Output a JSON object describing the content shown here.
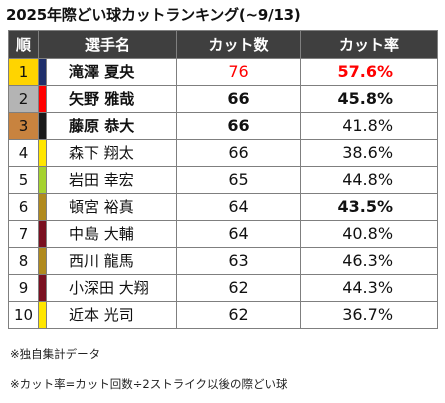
{
  "title": "2025年際どい球カットランキング(~9/13)",
  "headers": {
    "rank": "順",
    "player": "選手名",
    "cuts": "カット数",
    "rate": "カット率"
  },
  "rows": [
    {
      "rank": "1",
      "rank_bg": "#ffd400",
      "team_color": "#1f2f6b",
      "name": "滝澤 夏央",
      "cuts": "76",
      "rate": "57.6%",
      "name_bold": true,
      "cuts_bold": false,
      "rate_bold": true,
      "cuts_red": true,
      "rate_red": true
    },
    {
      "rank": "2",
      "rank_bg": "#b4b4b4",
      "team_color": "#ff0000",
      "name": "矢野 雅哉",
      "cuts": "66",
      "rate": "45.8%",
      "name_bold": true,
      "cuts_bold": true,
      "rate_bold": true,
      "cuts_red": false,
      "rate_red": false
    },
    {
      "rank": "3",
      "rank_bg": "#c8833f",
      "team_color": "#1a1a1a",
      "name": "藤原 恭大",
      "cuts": "66",
      "rate": "41.8%",
      "name_bold": true,
      "cuts_bold": true,
      "rate_bold": false,
      "cuts_red": false,
      "rate_red": false
    },
    {
      "rank": "4",
      "rank_bg": "",
      "team_color": "#ffe600",
      "name": "森下 翔太",
      "cuts": "66",
      "rate": "38.6%",
      "name_bold": false,
      "cuts_bold": false,
      "rate_bold": false,
      "cuts_red": false,
      "rate_red": false
    },
    {
      "rank": "5",
      "rank_bg": "",
      "team_color": "#a5d22f",
      "name": "岩田 幸宏",
      "cuts": "65",
      "rate": "44.8%",
      "name_bold": false,
      "cuts_bold": false,
      "rate_bold": false,
      "cuts_red": false,
      "rate_red": false
    },
    {
      "rank": "6",
      "rank_bg": "",
      "team_color": "#b08a1e",
      "name": "頓宮 裕真",
      "cuts": "64",
      "rate": "43.5%",
      "name_bold": false,
      "cuts_bold": false,
      "rate_bold": true,
      "cuts_red": false,
      "rate_red": false
    },
    {
      "rank": "7",
      "rank_bg": "",
      "team_color": "#7a1020",
      "name": "中島 大輔",
      "cuts": "64",
      "rate": "40.8%",
      "name_bold": false,
      "cuts_bold": false,
      "rate_bold": false,
      "cuts_red": false,
      "rate_red": false
    },
    {
      "rank": "8",
      "rank_bg": "",
      "team_color": "#b08a1e",
      "name": "西川 龍馬",
      "cuts": "63",
      "rate": "46.3%",
      "name_bold": false,
      "cuts_bold": false,
      "rate_bold": false,
      "cuts_red": false,
      "rate_red": false
    },
    {
      "rank": "9",
      "rank_bg": "",
      "team_color": "#7a1020",
      "name": "小深田 大翔",
      "cuts": "62",
      "rate": "44.3%",
      "name_bold": false,
      "cuts_bold": false,
      "rate_bold": false,
      "cuts_red": false,
      "rate_red": false
    },
    {
      "rank": "10",
      "rank_bg": "",
      "team_color": "#ffe600",
      "name": "近本 光司",
      "cuts": "62",
      "rate": "36.7%",
      "name_bold": false,
      "cuts_bold": false,
      "rate_bold": false,
      "cuts_red": false,
      "rate_red": false
    }
  ],
  "notes": [
    "※独自集計データ",
    "※カット率=カット回数÷2ストライク以後の際どい球"
  ],
  "colors": {
    "header_bg": "#3f3f3f",
    "highlight": "#ff0000"
  }
}
